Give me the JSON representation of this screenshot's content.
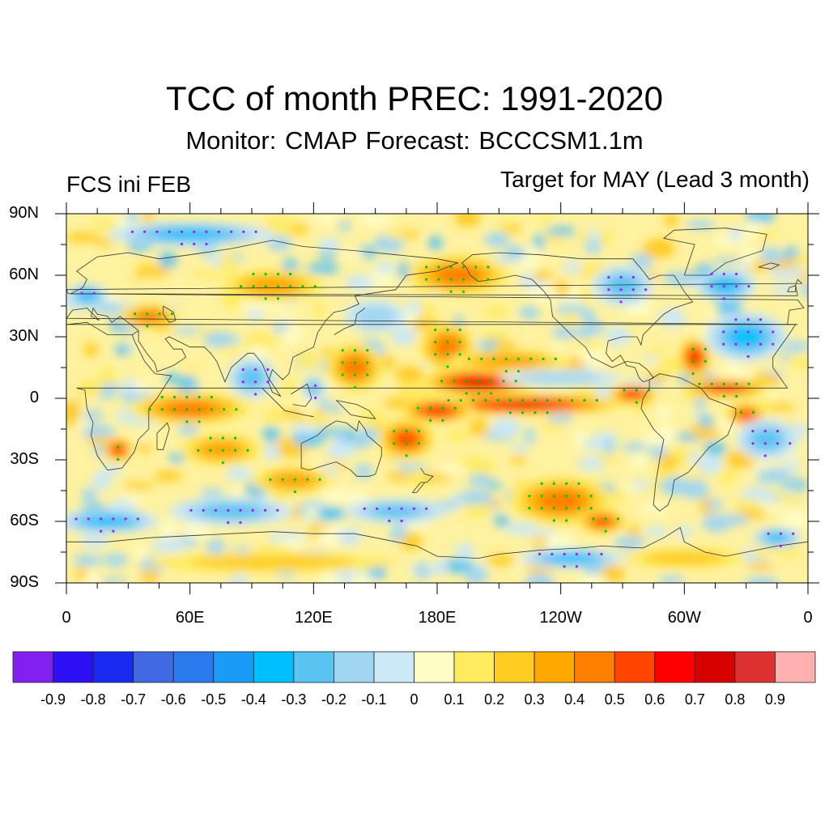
{
  "chart_data": {
    "type": "heatmap",
    "title": "TCC of month PREC: 1991-2020",
    "subtitle": "Monitor: CMAP   Forecast: BCCCSM1.1m",
    "left_string": "FCS ini FEB",
    "right_string": "Target for MAY (Lead 3 month)",
    "projection": "cylindrical-equidistant",
    "lon_range": [
      0,
      360
    ],
    "lat_range": [
      -90,
      90
    ],
    "x_ticks": [
      {
        "lon": 0,
        "label": "0"
      },
      {
        "lon": 60,
        "label": "60E"
      },
      {
        "lon": 120,
        "label": "120E"
      },
      {
        "lon": 180,
        "label": "180E"
      },
      {
        "lon": 240,
        "label": "120W"
      },
      {
        "lon": 300,
        "label": "60W"
      },
      {
        "lon": 360,
        "label": "0"
      }
    ],
    "y_ticks": [
      {
        "lat": 90,
        "label": "90N"
      },
      {
        "lat": 60,
        "label": "60N"
      },
      {
        "lat": 30,
        "label": "30N"
      },
      {
        "lat": 0,
        "label": "0"
      },
      {
        "lat": -30,
        "label": "30S"
      },
      {
        "lat": -60,
        "label": "60S"
      },
      {
        "lat": -90,
        "label": "90S"
      }
    ],
    "colorbar": {
      "levels": [
        "-0.9",
        "-0.8",
        "-0.7",
        "-0.6",
        "-0.5",
        "-0.4",
        "-0.3",
        "-0.2",
        "-0.1",
        "0",
        "0.1",
        "0.2",
        "0.3",
        "0.4",
        "0.5",
        "0.6",
        "0.7",
        "0.8",
        "0.9"
      ],
      "colors": [
        "#8221ef",
        "#2b10f5",
        "#1a2af0",
        "#4169e1",
        "#2a7aee",
        "#1a9bf8",
        "#00bfff",
        "#5bc3f2",
        "#a1d6f1",
        "#cbe8f6",
        "#fffdc6",
        "#ffeb5e",
        "#ffcc22",
        "#ffa800",
        "#ff7f00",
        "#ff4500",
        "#ff0000",
        "#d70000",
        "#dc3232",
        "#ffb0b0"
      ],
      "orientation": "horizontal",
      "placement": "bottom"
    },
    "field_notes": "Correlation field; strongest positive values (0.6-0.8) along equatorial/tropical central-eastern Pacific (roughly 170E-90W, 15N-10S); positive bands over SE Pacific, southern Africa, Indian Ocean, tropical Atlantic; negative patches over North Atlantic, North America, Southern Ocean near 60S and Antarctic coast near 120W.",
    "significance_markers": {
      "positive": {
        "color": "#00c800",
        "meaning": "significant positive"
      },
      "negative": {
        "color": "#a020f0",
        "meaning": "significant negative"
      }
    },
    "blobs": [
      {
        "lon": 200,
        "lat": 8,
        "rlon": 28,
        "rlat": 7,
        "v": 0.7
      },
      {
        "lon": 222,
        "lat": -3,
        "rlon": 50,
        "rlat": 5,
        "v": 0.7
      },
      {
        "lon": 180,
        "lat": -6,
        "rlon": 18,
        "rlat": 6,
        "v": 0.6
      },
      {
        "lon": 275,
        "lat": 2,
        "rlon": 12,
        "rlat": 5,
        "v": 0.6
      },
      {
        "lon": 165,
        "lat": -20,
        "rlon": 14,
        "rlat": 10,
        "v": 0.5
      },
      {
        "lon": 185,
        "lat": 25,
        "rlon": 14,
        "rlat": 12,
        "v": 0.4
      },
      {
        "lon": 215,
        "lat": 18,
        "rlon": 30,
        "rlat": 6,
        "v": 0.3
      },
      {
        "lon": 140,
        "lat": 15,
        "rlon": 14,
        "rlat": 12,
        "v": 0.4
      },
      {
        "lon": 25,
        "lat": -25,
        "rlon": 7,
        "rlat": 6,
        "v": 0.6
      },
      {
        "lon": 60,
        "lat": -5,
        "rlon": 30,
        "rlat": 8,
        "v": 0.4
      },
      {
        "lon": 75,
        "lat": -25,
        "rlon": 20,
        "rlat": 8,
        "v": 0.3
      },
      {
        "lon": 110,
        "lat": -40,
        "rlon": 20,
        "rlat": 7,
        "v": 0.3
      },
      {
        "lon": 240,
        "lat": -50,
        "rlon": 25,
        "rlat": 12,
        "v": 0.4
      },
      {
        "lon": 260,
        "lat": -60,
        "rlon": 12,
        "rlat": 6,
        "v": 0.5
      },
      {
        "lon": 305,
        "lat": 20,
        "rlon": 8,
        "rlat": 10,
        "v": 0.6
      },
      {
        "lon": 320,
        "lat": 5,
        "rlon": 22,
        "rlat": 5,
        "v": 0.5
      },
      {
        "lon": 330,
        "lat": -8,
        "rlon": 10,
        "rlat": 6,
        "v": 0.5
      },
      {
        "lon": 190,
        "lat": 60,
        "rlon": 25,
        "rlat": 10,
        "v": 0.4
      },
      {
        "lon": 100,
        "lat": 55,
        "rlon": 25,
        "rlat": 8,
        "v": 0.3
      },
      {
        "lon": 40,
        "lat": 40,
        "rlon": 15,
        "rlat": 6,
        "v": 0.4
      },
      {
        "lon": 120,
        "lat": 5,
        "rlon": 6,
        "rlat": 6,
        "v": -0.3
      },
      {
        "lon": 240,
        "lat": 10,
        "rlon": 30,
        "rlat": 4,
        "v": -0.2
      },
      {
        "lon": 330,
        "lat": 30,
        "rlon": 20,
        "rlat": 12,
        "v": -0.4
      },
      {
        "lon": 320,
        "lat": 55,
        "rlon": 15,
        "rlat": 8,
        "v": -0.4
      },
      {
        "lon": 270,
        "lat": 55,
        "rlon": 15,
        "rlat": 10,
        "v": -0.3
      },
      {
        "lon": 20,
        "lat": -60,
        "rlon": 25,
        "rlat": 6,
        "v": -0.4
      },
      {
        "lon": 345,
        "lat": -68,
        "rlon": 12,
        "rlat": 5,
        "v": -0.4
      },
      {
        "lon": 245,
        "lat": -78,
        "rlon": 25,
        "rlat": 5,
        "v": -0.4
      },
      {
        "lon": 80,
        "lat": -55,
        "rlon": 30,
        "rlat": 7,
        "v": -0.3
      },
      {
        "lon": 160,
        "lat": -55,
        "rlon": 25,
        "rlat": 6,
        "v": -0.3
      },
      {
        "lon": 90,
        "lat": 10,
        "rlon": 12,
        "rlat": 10,
        "v": -0.3
      },
      {
        "lon": 340,
        "lat": -20,
        "rlon": 15,
        "rlat": 10,
        "v": -0.3
      },
      {
        "lon": 60,
        "lat": 80,
        "rlon": 40,
        "rlat": 6,
        "v": -0.4
      },
      {
        "lon": 10,
        "lat": 50,
        "rlon": 10,
        "rlat": 6,
        "v": -0.4
      },
      {
        "lon": 150,
        "lat": 40,
        "rlon": 15,
        "rlat": 8,
        "v": -0.2
      },
      {
        "lon": 100,
        "lat": -80,
        "rlon": 60,
        "rlat": 5,
        "v": 0.2
      },
      {
        "lon": 300,
        "lat": -78,
        "rlon": 30,
        "rlat": 5,
        "v": 0.2
      }
    ]
  }
}
